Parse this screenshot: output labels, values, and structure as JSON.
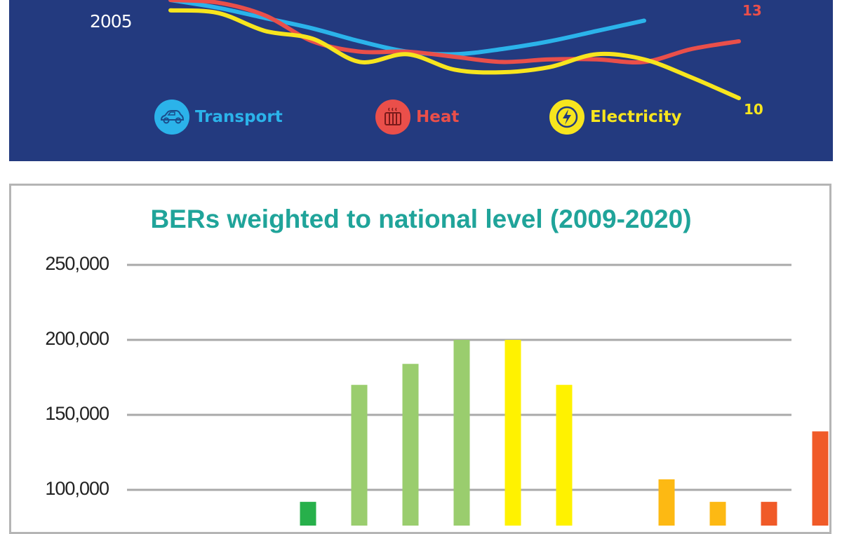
{
  "chart_data": [
    {
      "type": "line",
      "title": "",
      "x": [
        "2005",
        "",
        "",
        "",
        "",
        "",
        "",
        "",
        "",
        "",
        "",
        "",
        ""
      ],
      "x_start_label": "2005",
      "legend_placement": "bottom",
      "series": [
        {
          "name": "Transport",
          "color": "#2bb3ea",
          "values": [
            100,
            97,
            93,
            89,
            84,
            80,
            79,
            81,
            84,
            88,
            92,
            null,
            null
          ],
          "end_label": ""
        },
        {
          "name": "Heat",
          "color": "#ea4f4a",
          "values": [
            100,
            99,
            94,
            84,
            80,
            80,
            78,
            76,
            77,
            77,
            76,
            81,
            84
          ],
          "end_label": "13"
        },
        {
          "name": "Electricity",
          "color": "#f7e51e",
          "values": [
            96,
            95,
            88,
            85,
            76,
            79,
            73,
            72,
            74,
            79,
            77,
            70,
            62
          ],
          "end_label": "10"
        }
      ],
      "legend": {
        "transport": {
          "label": "Transport",
          "icon": "car-icon",
          "color": "#2bb3ea"
        },
        "heat": {
          "label": "Heat",
          "icon": "radiator-icon",
          "color": "#ea4f4a"
        },
        "electricity": {
          "label": "Electricity",
          "icon": "lightning-bolt-icon",
          "color": "#f7e51e"
        }
      }
    },
    {
      "type": "bar",
      "title": "BERs weighted to national level (2009-2020)",
      "ylim": [
        0,
        250000
      ],
      "yticks": [
        "250,000",
        "200,000",
        "150,000",
        "100,000"
      ],
      "ytick_values": [
        250000,
        200000,
        150000,
        100000
      ],
      "grid": true,
      "categories": [
        "",
        "",
        "",
        "",
        "",
        "",
        "",
        "",
        "",
        "",
        "",
        "",
        "",
        ""
      ],
      "values": [
        0,
        0,
        0,
        92000,
        170000,
        184000,
        200000,
        200000,
        170000,
        0,
        107000,
        92000,
        92000,
        139000
      ],
      "bar_colors": [
        "#1a9a48",
        "#1a9a48",
        "#1a9a48",
        "#27b04b",
        "#9acd6e",
        "#9acd6e",
        "#9acd6e",
        "#fff200",
        "#fff200",
        "#fdb913",
        "#fdb913",
        "#fdb913",
        "#f05a28",
        "#f05a28"
      ]
    }
  ]
}
